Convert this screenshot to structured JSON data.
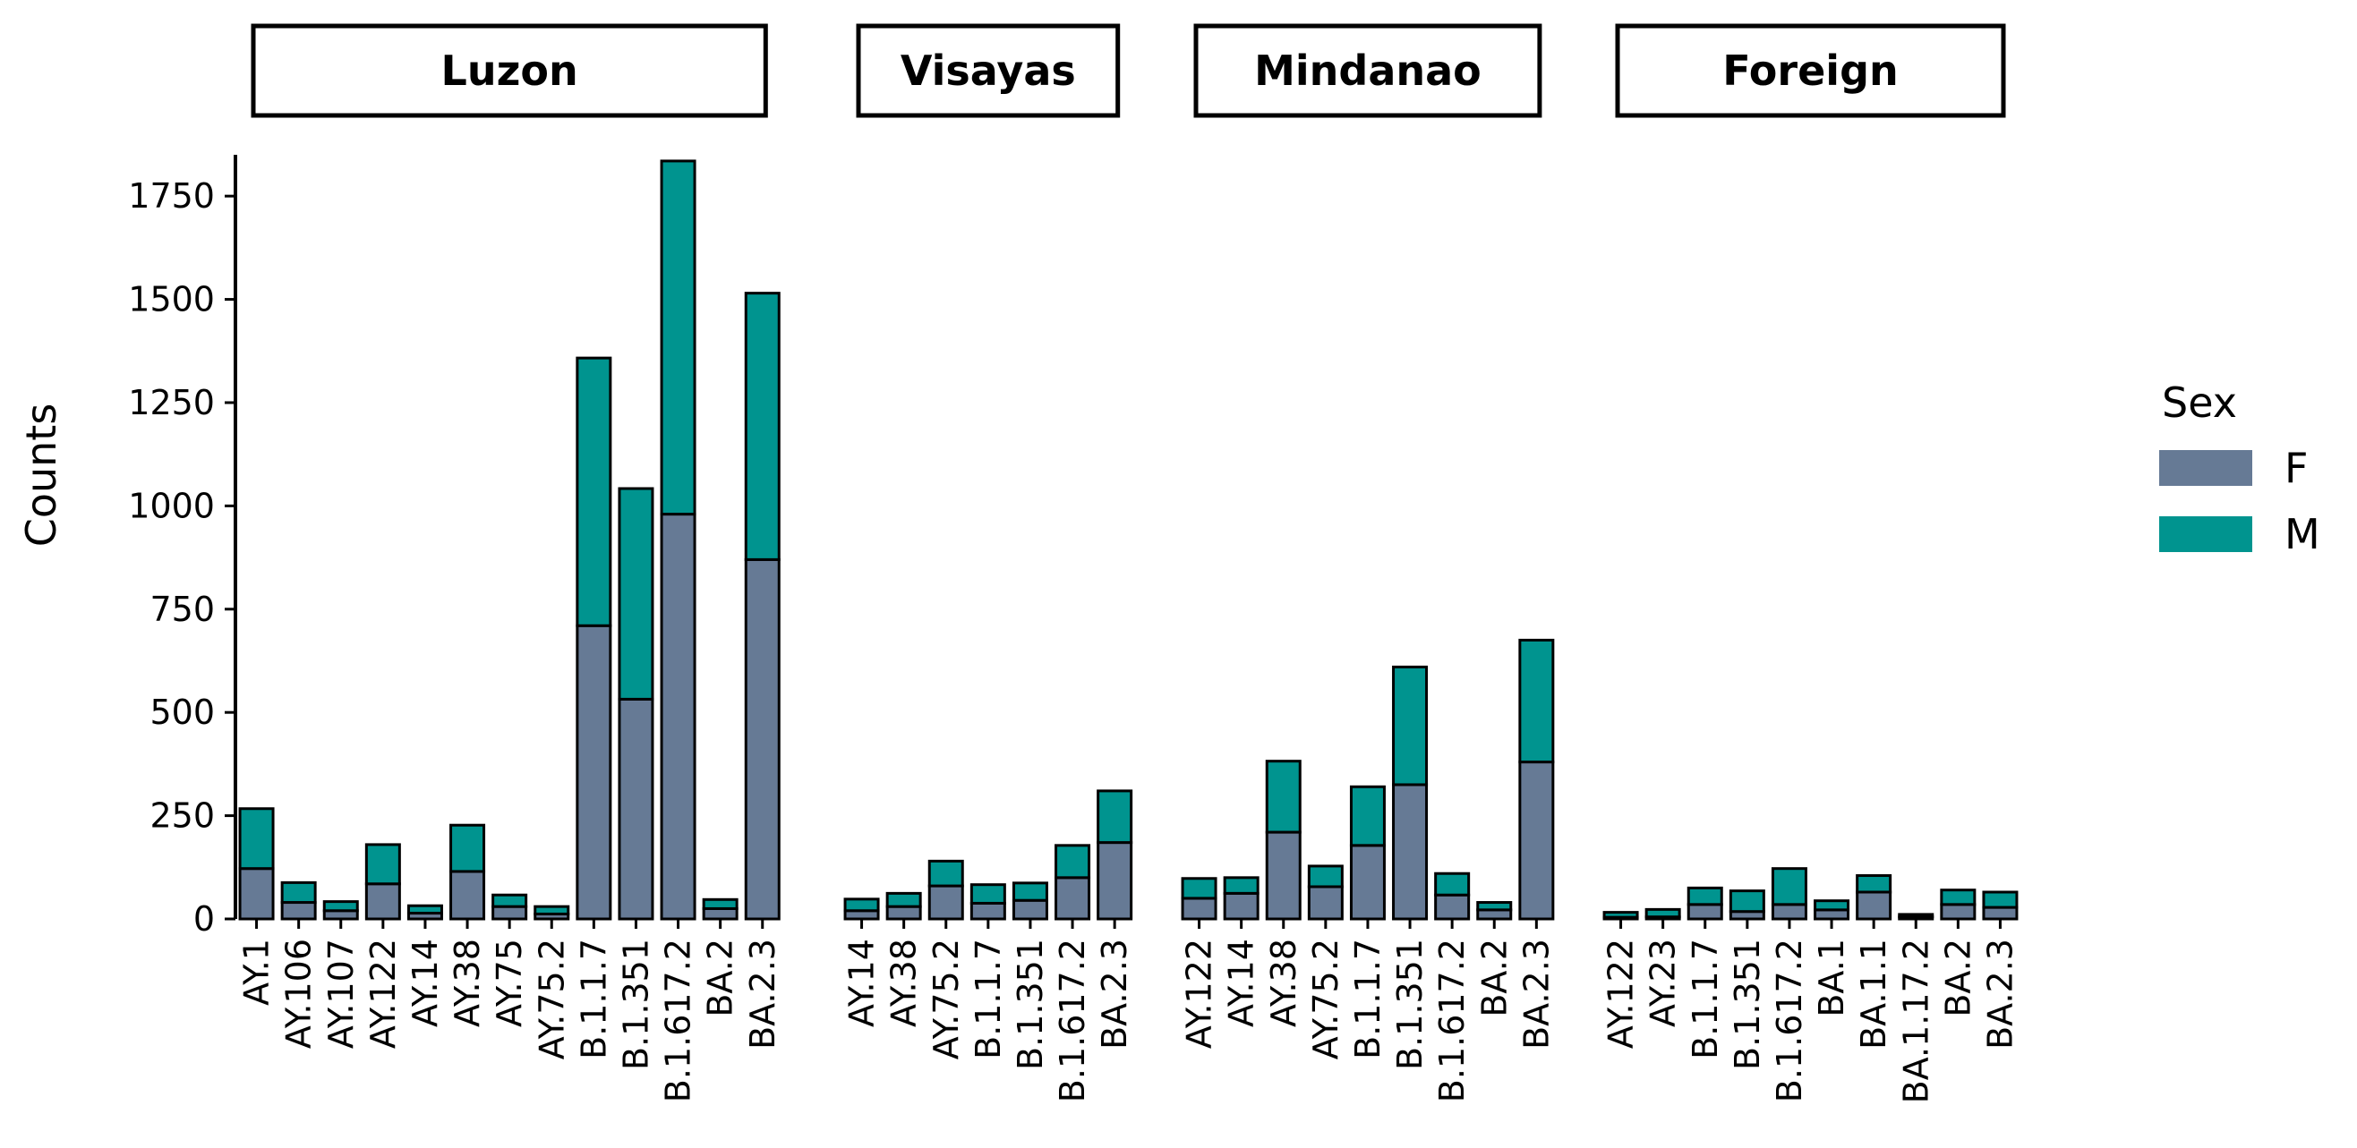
{
  "chart_data": {
    "type": "bar",
    "stacked": true,
    "ylabel": "Counts",
    "ylim": [
      0,
      1850
    ],
    "yticks": [
      0,
      250,
      500,
      750,
      1000,
      1250,
      1500,
      1750
    ],
    "ytick_labels": [
      "0",
      "250",
      "500",
      "750",
      "1000",
      "1250",
      "1500",
      "1750"
    ],
    "grid": false,
    "legend": {
      "title": "Sex",
      "position": "right",
      "items": [
        {
          "label": "F",
          "color": "#667a95"
        },
        {
          "label": "M",
          "color": "#00948f"
        }
      ]
    },
    "colors": {
      "F": "#667a95",
      "M": "#00948f"
    },
    "series_names": [
      "F",
      "M"
    ],
    "facets": [
      {
        "label": "Luzon",
        "categories": [
          "AY.1",
          "AY.106",
          "AY.107",
          "AY.122",
          "AY.14",
          "AY.38",
          "AY.75",
          "AY.75.2",
          "B.1.1.7",
          "B.1.351",
          "B.1.617.2",
          "BA.2",
          "BA.2.3"
        ],
        "F": [
          122,
          40,
          20,
          85,
          14,
          115,
          30,
          12,
          710,
          532,
          980,
          25,
          870
        ],
        "M": [
          145,
          48,
          22,
          95,
          18,
          112,
          28,
          18,
          648,
          510,
          855,
          22,
          645
        ]
      },
      {
        "label": "Visayas",
        "categories": [
          "AY.14",
          "AY.38",
          "AY.75.2",
          "B.1.1.7",
          "B.1.351",
          "B.1.617.2",
          "BA.2.3"
        ],
        "F": [
          20,
          30,
          80,
          38,
          45,
          100,
          185
        ],
        "M": [
          28,
          32,
          60,
          45,
          42,
          78,
          125
        ]
      },
      {
        "label": "Mindanao",
        "categories": [
          "AY.122",
          "AY.14",
          "AY.38",
          "AY.75.2",
          "B.1.1.7",
          "B.1.351",
          "B.1.617.2",
          "BA.2",
          "BA.2.3"
        ],
        "F": [
          50,
          62,
          210,
          78,
          178,
          325,
          58,
          22,
          380
        ],
        "M": [
          48,
          38,
          172,
          50,
          142,
          285,
          52,
          18,
          295
        ]
      },
      {
        "label": "Foreign",
        "categories": [
          "AY.122",
          "AY.23",
          "B.1.1.7",
          "B.1.351",
          "B.1.617.2",
          "BA.1",
          "BA.1.1",
          "BA.1.17.2",
          "BA.2",
          "BA.2.3"
        ],
        "F": [
          4,
          5,
          35,
          18,
          35,
          22,
          65,
          5,
          35,
          28
        ],
        "M": [
          12,
          18,
          40,
          50,
          87,
          22,
          40,
          6,
          35,
          37
        ]
      }
    ]
  }
}
